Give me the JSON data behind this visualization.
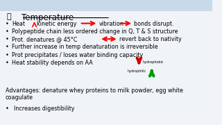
{
  "bg_color": "#f0f4f8",
  "header_bg": "#c8daea",
  "title": "Temperature",
  "bullet_points": [
    "Heat kinetic energy         vibration      bonds disrupt.",
    "Polypeptide chain less ordered change in Q, T & S structure",
    "Prot. denatures @ 45°C          revert back to nativity",
    "Further increase in temp denaturation is irreversible",
    "Prot precipitates / loses water binding capacity",
    "Heat stability depends on AA"
  ],
  "advantages_text": "Advantages: denature whey proteins to milk powder, egg white\ncoagulate",
  "bullet_last": "Increases digestibility",
  "hydrophobic_label": "hydrophobic",
  "hydrophilic_label": "hydrophilic",
  "arrow_down_color": "#cc0000",
  "arrow_up_color": "#009900",
  "title_color": "#000000",
  "text_color": "#000000",
  "font_size": 5.8,
  "title_font_size": 8.5
}
